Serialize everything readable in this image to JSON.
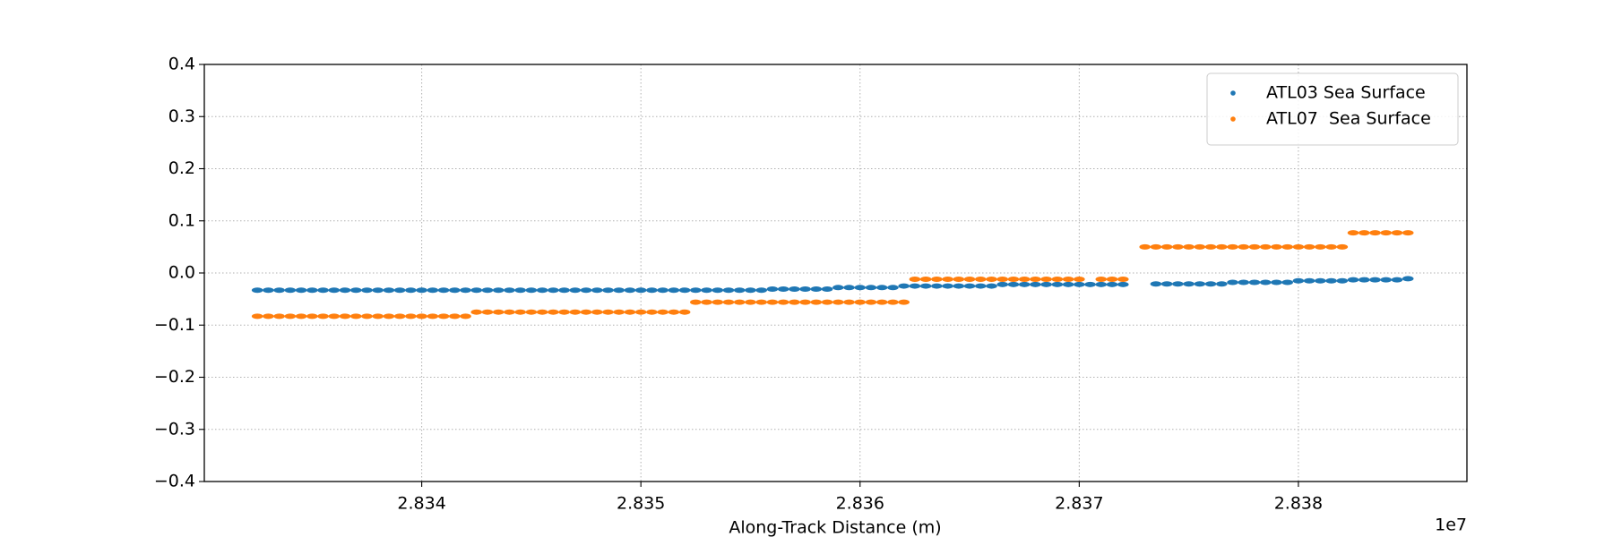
{
  "chart_data": {
    "type": "scatter",
    "x_label": "Along-Track Distance (m)",
    "x_offset_label": "1e7",
    "xlim": [
      28330080,
      28387690
    ],
    "xticks": [
      {
        "value": 28340000,
        "label": "2.834"
      },
      {
        "value": 28350000,
        "label": "2.835"
      },
      {
        "value": 28360000,
        "label": "2.836"
      },
      {
        "value": 28370000,
        "label": "2.837"
      },
      {
        "value": 28380000,
        "label": "2.838"
      }
    ],
    "ylim": [
      -0.4,
      0.4
    ],
    "yticks": [
      {
        "value": -0.4,
        "label": "−0.4"
      },
      {
        "value": -0.3,
        "label": "−0.3"
      },
      {
        "value": -0.2,
        "label": "−0.2"
      },
      {
        "value": -0.1,
        "label": "−0.1"
      },
      {
        "value": 0,
        "label": "0.0"
      },
      0.1,
      0.2,
      0.3,
      0.4
    ],
    "grid": true,
    "legend": "upper right",
    "series": [
      {
        "name": "ATL03 Sea Surface",
        "color": "#1f77b4",
        "x": [
          28332500,
          28333000,
          28333500,
          28334000,
          28334500,
          28335000,
          28335500,
          28336000,
          28336500,
          28337000,
          28337500,
          28338000,
          28338500,
          28339000,
          28339500,
          28340000,
          28340500,
          28341000,
          28341500,
          28342000,
          28342500,
          28343000,
          28343500,
          28344000,
          28344500,
          28345000,
          28345500,
          28346000,
          28346500,
          28347000,
          28347500,
          28348000,
          28348500,
          28349000,
          28349500,
          28350000,
          28350500,
          28351000,
          28351500,
          28352000,
          28352500,
          28353000,
          28353500,
          28354000,
          28354500,
          28355000,
          28355500,
          28356000,
          28356500,
          28357000,
          28357500,
          28358000,
          28358500,
          28359000,
          28359500,
          28360000,
          28360500,
          28361000,
          28361500,
          28362000,
          28362500,
          28363000,
          28363500,
          28364000,
          28364500,
          28365000,
          28365500,
          28366000,
          28366500,
          28367000,
          28367500,
          28368000,
          28368500,
          28369000,
          28369500,
          28370000,
          28370500,
          28371000,
          28371500,
          28372000,
          28373500,
          28374000,
          28374500,
          28375000,
          28375500,
          28376000,
          28376500,
          28377000,
          28377500,
          28378000,
          28378500,
          28379000,
          28379500,
          28380000,
          28380500,
          28381000,
          28381500,
          28382000,
          28382500,
          28383000,
          28383500,
          28384000,
          28384500,
          28385000
        ],
        "values": [
          -0.033,
          -0.033,
          -0.033,
          -0.033,
          -0.033,
          -0.033,
          -0.033,
          -0.033,
          -0.033,
          -0.033,
          -0.033,
          -0.033,
          -0.033,
          -0.033,
          -0.033,
          -0.033,
          -0.033,
          -0.033,
          -0.033,
          -0.033,
          -0.033,
          -0.033,
          -0.033,
          -0.033,
          -0.033,
          -0.033,
          -0.033,
          -0.033,
          -0.033,
          -0.033,
          -0.033,
          -0.033,
          -0.033,
          -0.033,
          -0.033,
          -0.033,
          -0.033,
          -0.033,
          -0.033,
          -0.033,
          -0.033,
          -0.033,
          -0.033,
          -0.033,
          -0.033,
          -0.033,
          -0.033,
          -0.031,
          -0.031,
          -0.031,
          -0.031,
          -0.031,
          -0.031,
          -0.028,
          -0.028,
          -0.028,
          -0.028,
          -0.028,
          -0.028,
          -0.025,
          -0.025,
          -0.025,
          -0.025,
          -0.025,
          -0.025,
          -0.025,
          -0.025,
          -0.025,
          -0.022,
          -0.022,
          -0.022,
          -0.022,
          -0.022,
          -0.022,
          -0.022,
          -0.022,
          -0.022,
          -0.022,
          -0.022,
          -0.022,
          -0.021,
          -0.021,
          -0.021,
          -0.021,
          -0.021,
          -0.021,
          -0.021,
          -0.018,
          -0.018,
          -0.018,
          -0.018,
          -0.018,
          -0.018,
          -0.015,
          -0.015,
          -0.015,
          -0.015,
          -0.015,
          -0.013,
          -0.013,
          -0.013,
          -0.013,
          -0.013,
          -0.011
        ]
      },
      {
        "name": "ATL07  Sea Surface",
        "color": "#ff7f0e",
        "x": [
          28332500,
          28333000,
          28333500,
          28334000,
          28334500,
          28335000,
          28335500,
          28336000,
          28336500,
          28337000,
          28337500,
          28338000,
          28338500,
          28339000,
          28339500,
          28340000,
          28340500,
          28341000,
          28341500,
          28342000,
          28342500,
          28343000,
          28343500,
          28344000,
          28344500,
          28345000,
          28345500,
          28346000,
          28346500,
          28347000,
          28347500,
          28348000,
          28348500,
          28349000,
          28349500,
          28350000,
          28350500,
          28351000,
          28351500,
          28352000,
          28352500,
          28353000,
          28353500,
          28354000,
          28354500,
          28355000,
          28355500,
          28356000,
          28356500,
          28357000,
          28357500,
          28358000,
          28358500,
          28359000,
          28359500,
          28360000,
          28360500,
          28361000,
          28361500,
          28362000,
          28362500,
          28363000,
          28363500,
          28364000,
          28364500,
          28365000,
          28365500,
          28366000,
          28366500,
          28367000,
          28367500,
          28368000,
          28368500,
          28369000,
          28369500,
          28370000,
          28371000,
          28371500,
          28372000,
          28373000,
          28373500,
          28374000,
          28374500,
          28375000,
          28375500,
          28376000,
          28376500,
          28377000,
          28377500,
          28378000,
          28378500,
          28379000,
          28379500,
          28380000,
          28380500,
          28381000,
          28381500,
          28382000,
          28382500,
          28383000,
          28383500,
          28384000,
          28384500,
          28385000
        ],
        "values": [
          -0.083,
          -0.083,
          -0.083,
          -0.083,
          -0.083,
          -0.083,
          -0.083,
          -0.083,
          -0.083,
          -0.083,
          -0.083,
          -0.083,
          -0.083,
          -0.083,
          -0.083,
          -0.083,
          -0.083,
          -0.083,
          -0.083,
          -0.083,
          -0.075,
          -0.075,
          -0.075,
          -0.075,
          -0.075,
          -0.075,
          -0.075,
          -0.075,
          -0.075,
          -0.075,
          -0.075,
          -0.075,
          -0.075,
          -0.075,
          -0.075,
          -0.075,
          -0.075,
          -0.075,
          -0.075,
          -0.075,
          -0.056,
          -0.056,
          -0.056,
          -0.056,
          -0.056,
          -0.056,
          -0.056,
          -0.056,
          -0.056,
          -0.056,
          -0.056,
          -0.056,
          -0.056,
          -0.056,
          -0.056,
          -0.056,
          -0.056,
          -0.056,
          -0.056,
          -0.056,
          -0.012,
          -0.012,
          -0.012,
          -0.012,
          -0.012,
          -0.012,
          -0.012,
          -0.012,
          -0.012,
          -0.012,
          -0.012,
          -0.012,
          -0.012,
          -0.012,
          -0.012,
          -0.012,
          -0.012,
          -0.012,
          -0.012,
          0.05,
          0.05,
          0.05,
          0.05,
          0.05,
          0.05,
          0.05,
          0.05,
          0.05,
          0.05,
          0.05,
          0.05,
          0.05,
          0.05,
          0.05,
          0.05,
          0.05,
          0.05,
          0.05,
          0.077,
          0.077,
          0.077,
          0.077,
          0.077,
          0.077
        ]
      }
    ]
  }
}
